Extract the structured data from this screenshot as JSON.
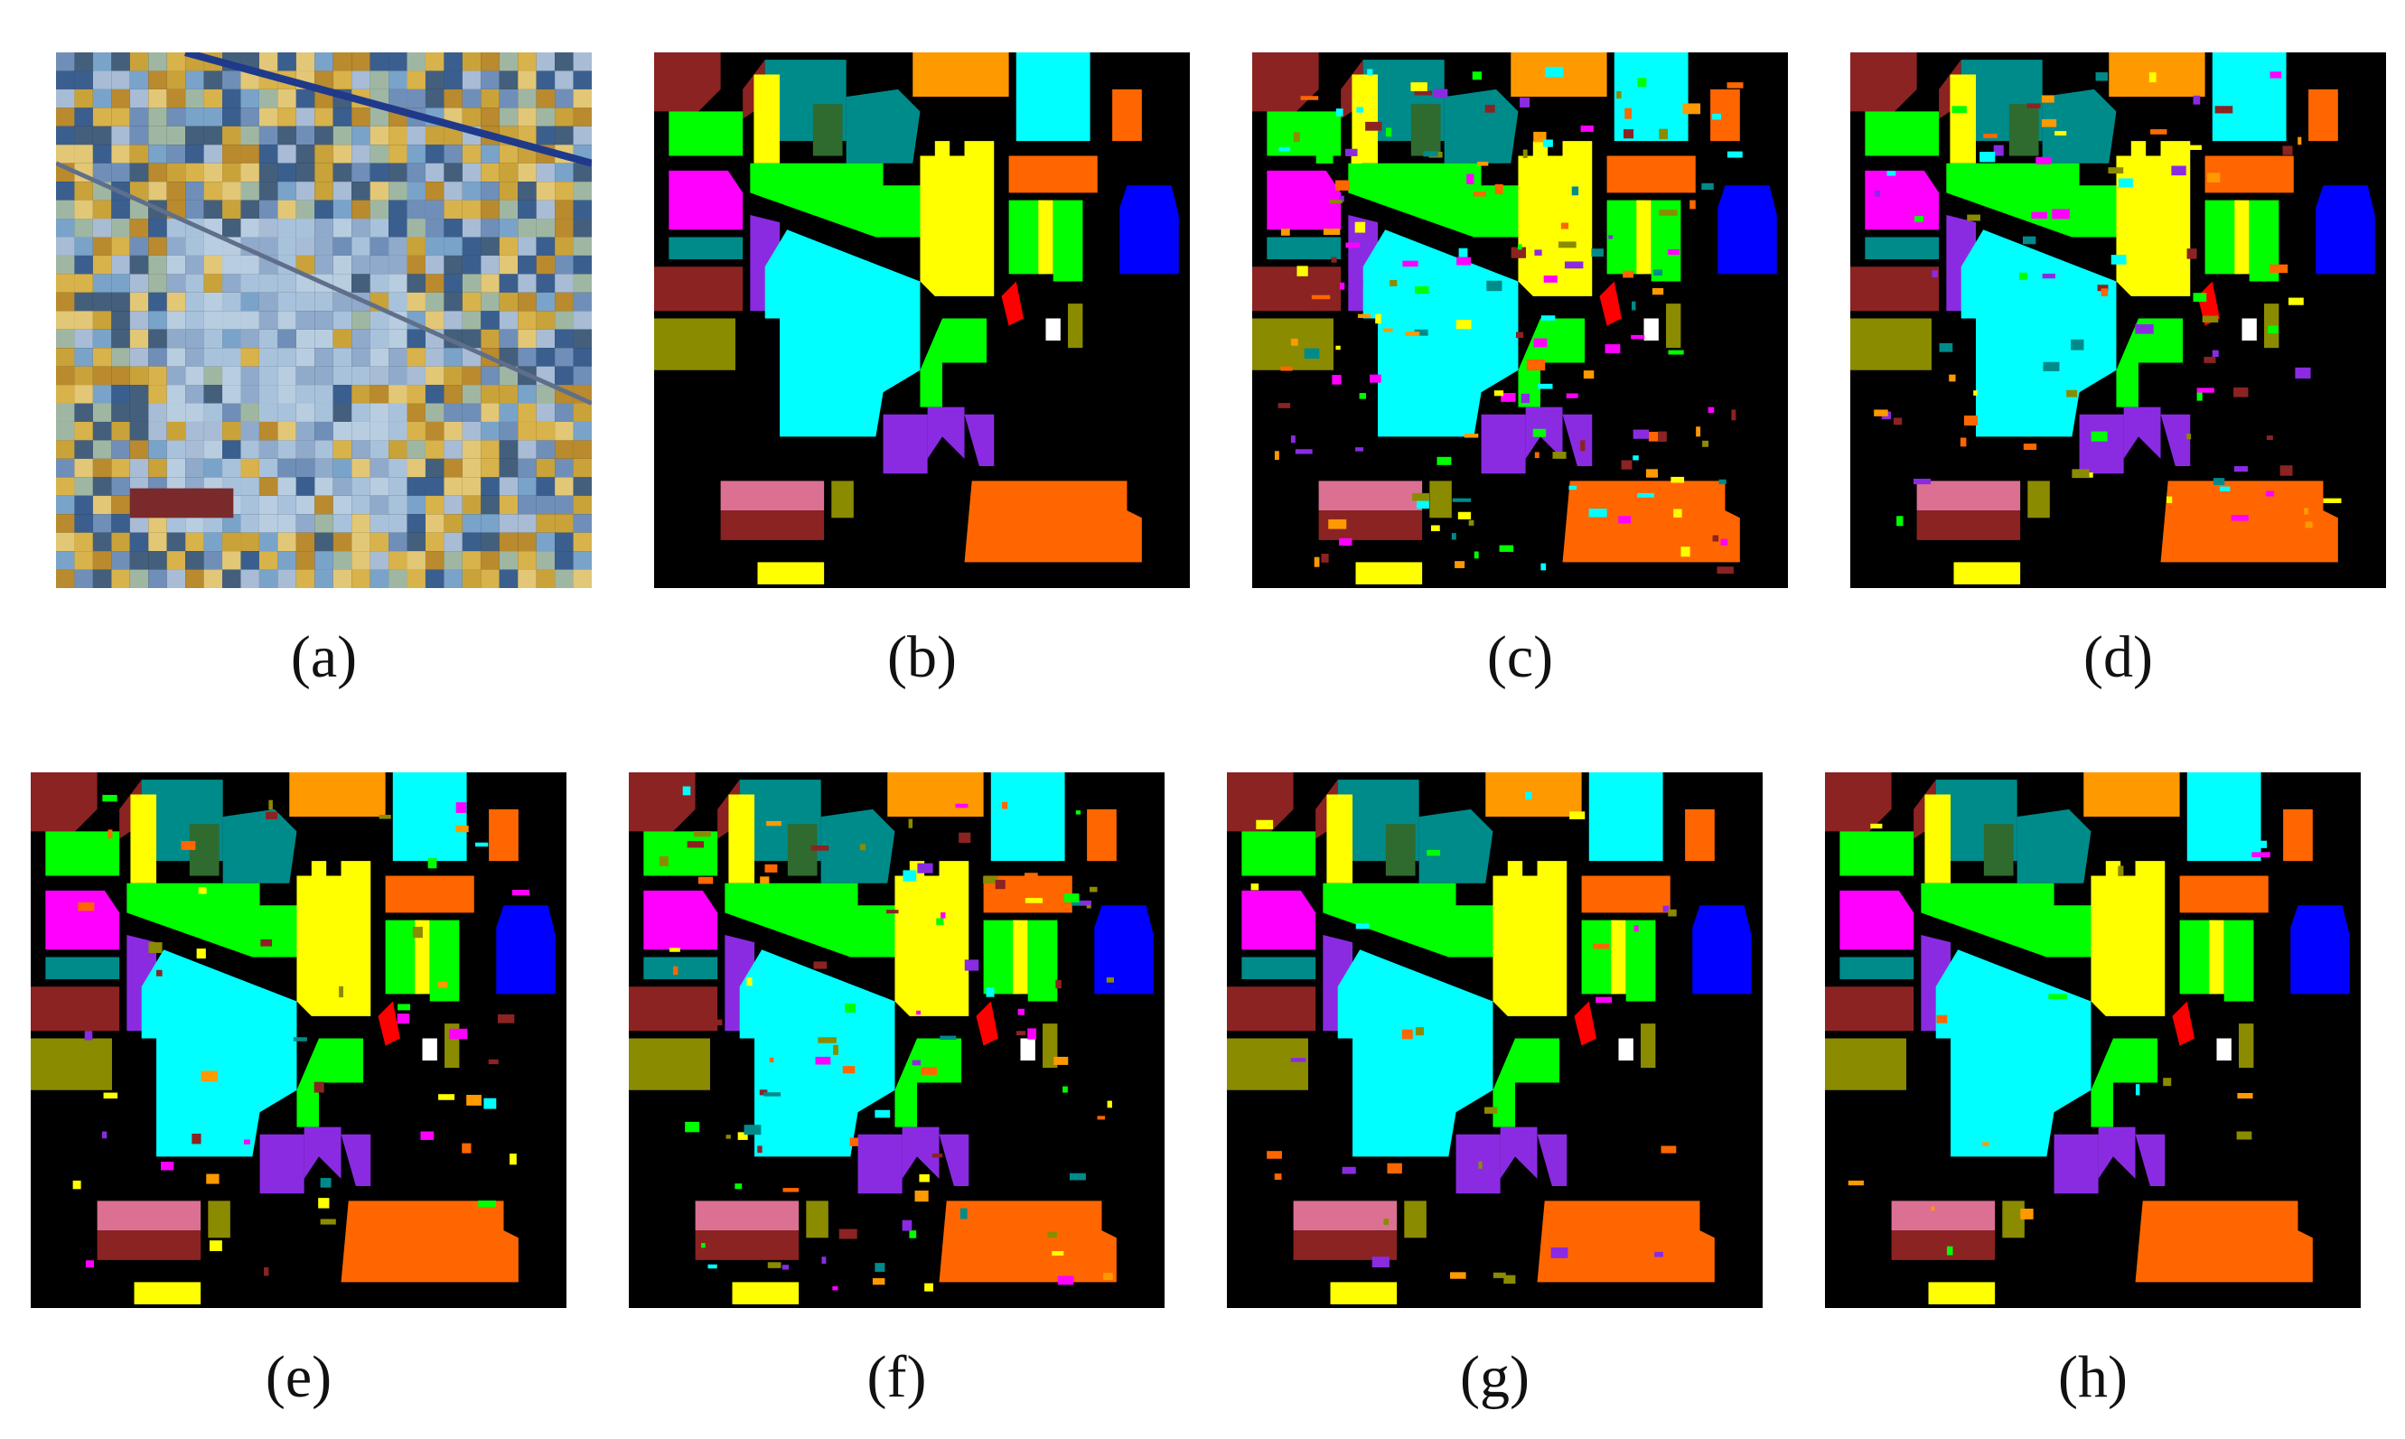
{
  "figure": {
    "panels": [
      {
        "id": "a",
        "label": "(a)",
        "kind": "false-color-image"
      },
      {
        "id": "b",
        "label": "(b)",
        "kind": "classification-map",
        "noise": 0.0
      },
      {
        "id": "c",
        "label": "(c)",
        "kind": "classification-map",
        "noise": 0.3
      },
      {
        "id": "d",
        "label": "(d)",
        "kind": "classification-map",
        "noise": 0.16
      },
      {
        "id": "e",
        "label": "(e)",
        "kind": "classification-map",
        "noise": 0.1
      },
      {
        "id": "f",
        "label": "(f)",
        "kind": "classification-map",
        "noise": 0.18
      },
      {
        "id": "g",
        "label": "(g)",
        "kind": "classification-map",
        "noise": 0.06
      },
      {
        "id": "h",
        "label": "(h)",
        "kind": "classification-map",
        "noise": 0.03
      }
    ],
    "colors": {
      "background": "#000000",
      "maroon": "#8b2323",
      "yellow": "#ffff00",
      "green": "#00ff00",
      "dark_green": "#2f6b2f",
      "teal": "#008b8b",
      "orange": "#ff9900",
      "cyan": "#00ffff",
      "orange_red": "#ff6600",
      "magenta": "#ff00ff",
      "purple": "#8a2be2",
      "blue": "#0000ff",
      "red": "#ff0000",
      "olive": "#8b8b00",
      "pink": "#db7093",
      "white": "#ffffff"
    }
  }
}
